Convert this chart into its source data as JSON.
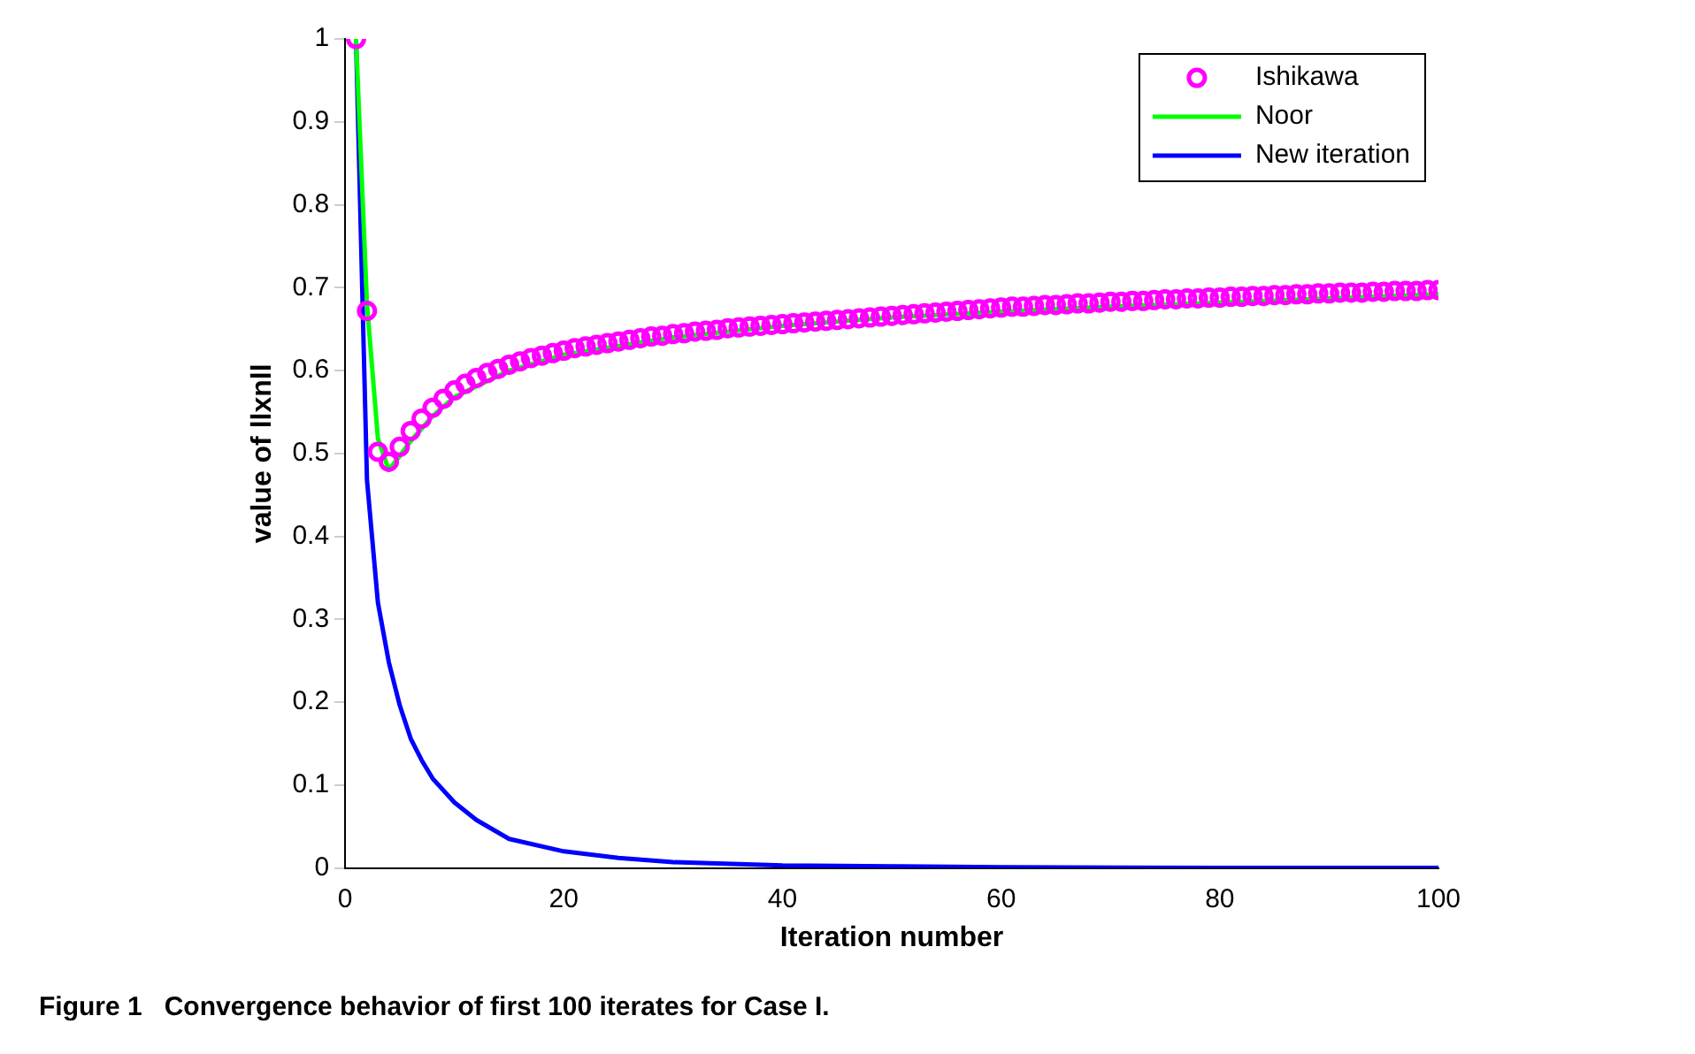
{
  "chart_data": {
    "type": "line",
    "xlabel": "Iteration number",
    "ylabel": "value of llxnll",
    "annotations": [
      "Figure 1   Convergence behavior of first 100 iterates for Case I."
    ],
    "xlim": [
      0,
      100
    ],
    "xticks": [
      0,
      20,
      40,
      60,
      80,
      100
    ],
    "ylim": [
      0,
      1
    ],
    "yticks": [
      0,
      0.1,
      0.2,
      0.3,
      0.4,
      0.5,
      0.6,
      0.7,
      0.8,
      0.9,
      1
    ],
    "grid": false,
    "legend": "top right",
    "series": [
      {
        "name": "Ishikawa",
        "type": "scatter",
        "marker": "circle",
        "color": "#ff00ff",
        "x": [
          1,
          2,
          3,
          4,
          5,
          6,
          7,
          8,
          9,
          10,
          11,
          12,
          13,
          14,
          15,
          16,
          17,
          18,
          19,
          20,
          21,
          22,
          23,
          24,
          25,
          26,
          27,
          28,
          29,
          30,
          31,
          32,
          33,
          34,
          35,
          36,
          37,
          38,
          39,
          40,
          41,
          42,
          43,
          44,
          45,
          46,
          47,
          48,
          49,
          50,
          51,
          52,
          53,
          54,
          55,
          56,
          57,
          58,
          59,
          60,
          61,
          62,
          63,
          64,
          65,
          66,
          67,
          68,
          69,
          70,
          71,
          72,
          73,
          74,
          75,
          76,
          77,
          78,
          79,
          80,
          81,
          82,
          83,
          84,
          85,
          86,
          87,
          88,
          89,
          90,
          91,
          92,
          93,
          94,
          95,
          96,
          97,
          98,
          99,
          100
        ],
        "values": [
          1,
          0.672,
          0.502,
          0.49,
          0.508,
          0.527,
          0.542,
          0.555,
          0.566,
          0.576,
          0.584,
          0.591,
          0.597,
          0.602,
          0.607,
          0.611,
          0.615,
          0.618,
          0.621,
          0.624,
          0.627,
          0.629,
          0.631,
          0.633,
          0.635,
          0.637,
          0.639,
          0.641,
          0.642,
          0.644,
          0.645,
          0.647,
          0.648,
          0.649,
          0.651,
          0.652,
          0.653,
          0.654,
          0.655,
          0.656,
          0.657,
          0.658,
          0.659,
          0.66,
          0.661,
          0.662,
          0.663,
          0.664,
          0.665,
          0.666,
          0.667,
          0.668,
          0.669,
          0.67,
          0.671,
          0.672,
          0.673,
          0.674,
          0.675,
          0.676,
          0.677,
          0.677,
          0.678,
          0.679,
          0.679,
          0.68,
          0.681,
          0.681,
          0.682,
          0.683,
          0.683,
          0.684,
          0.684,
          0.685,
          0.686,
          0.686,
          0.687,
          0.687,
          0.688,
          0.688,
          0.689,
          0.689,
          0.69,
          0.69,
          0.691,
          0.691,
          0.692,
          0.692,
          0.693,
          0.693,
          0.694,
          0.694,
          0.694,
          0.695,
          0.695,
          0.696,
          0.696,
          0.696,
          0.697,
          0.697
        ]
      },
      {
        "name": "Noor",
        "type": "line",
        "marker": "none",
        "color": "#00ff00",
        "x": [
          1,
          2,
          3,
          4,
          5,
          6,
          8,
          10,
          15,
          20,
          30,
          40,
          50,
          60,
          70,
          80,
          90,
          100
        ],
        "values": [
          1,
          0.68,
          0.518,
          0.48,
          0.497,
          0.515,
          0.545,
          0.568,
          0.6,
          0.619,
          0.64,
          0.654,
          0.664,
          0.671,
          0.677,
          0.682,
          0.687,
          0.692
        ]
      },
      {
        "name": "New iteration",
        "type": "line",
        "marker": "none",
        "color": "#0000ff",
        "x": [
          1,
          2,
          3,
          4,
          5,
          6,
          7,
          8,
          10,
          12,
          15,
          20,
          25,
          30,
          40,
          50,
          60,
          80,
          100
        ],
        "values": [
          1,
          0.468,
          0.32,
          0.248,
          0.196,
          0.156,
          0.13,
          0.108,
          0.079,
          0.058,
          0.035,
          0.02,
          0.012,
          0.007,
          0.003,
          0.002,
          0.001,
          0,
          0
        ]
      }
    ]
  }
}
